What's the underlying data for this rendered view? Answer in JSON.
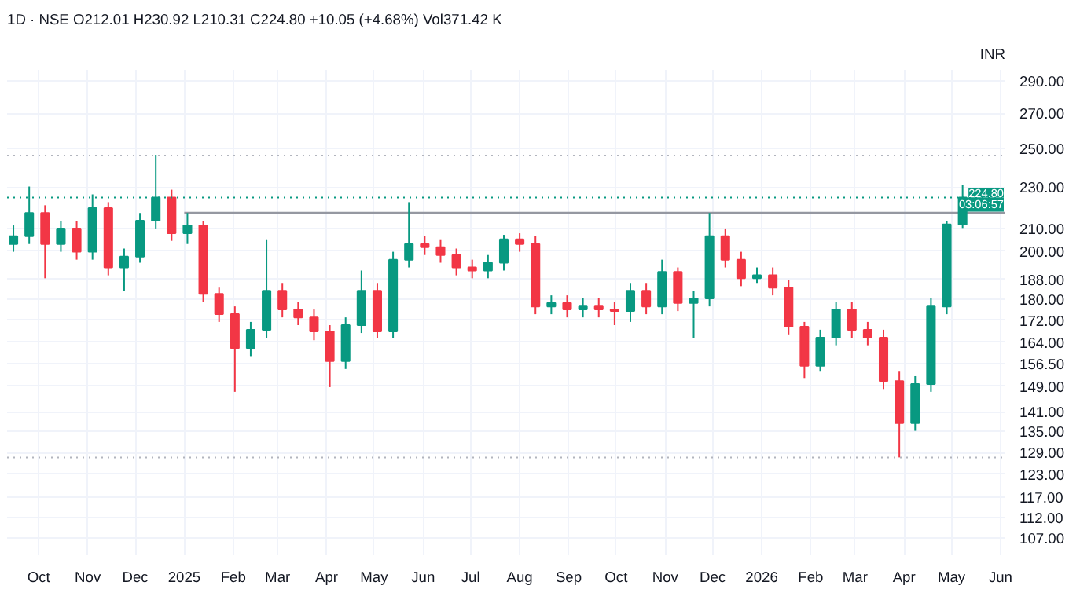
{
  "chart_data": {
    "type": "candlestick",
    "title": "1D · NSE  O212.01  H230.92  L210.31  C224.80  +10.05 (+4.68%)  Vol371.42 K",
    "ylabel": "INR",
    "x": [
      "2024-09-15",
      "2024-09-25",
      "2024-10-05",
      "2024-10-15",
      "2024-10-25",
      "2024-11-04",
      "2024-11-14",
      "2024-11-24",
      "2024-12-04",
      "2024-12-14",
      "2024-12-24",
      "2025-01-03",
      "2025-01-13",
      "2025-01-23",
      "2025-02-02",
      "2025-02-12",
      "2025-02-22",
      "2025-03-04",
      "2025-03-14",
      "2025-03-24",
      "2025-04-03",
      "2025-04-13",
      "2025-04-23",
      "2025-05-03",
      "2025-05-13",
      "2025-05-23",
      "2025-06-02",
      "2025-06-12",
      "2025-06-22",
      "2025-07-02",
      "2025-07-12",
      "2025-07-22",
      "2025-08-01",
      "2025-08-11",
      "2025-08-21",
      "2025-08-31",
      "2025-09-10",
      "2025-09-20",
      "2025-09-30",
      "2025-10-10",
      "2025-10-20",
      "2025-10-30",
      "2025-11-09",
      "2025-11-19",
      "2025-11-29",
      "2025-12-09",
      "2025-12-19",
      "2025-12-29",
      "2026-01-08",
      "2026-01-18",
      "2026-01-28",
      "2026-02-07",
      "2026-02-17",
      "2026-02-27",
      "2026-03-09",
      "2026-03-19",
      "2026-03-29",
      "2026-04-08",
      "2026-04-18",
      "2026-04-28",
      "2026-05-08"
    ],
    "ohlc": [
      [
        203.1,
        211.5,
        199.7,
        206.6
      ],
      [
        206.6,
        230.2,
        203.1,
        217.3
      ],
      [
        217.3,
        221.0,
        188.5,
        203.1
      ],
      [
        203.1,
        213.7,
        199.7,
        210.1
      ],
      [
        210.1,
        213.7,
        196.3,
        199.7
      ],
      [
        199.7,
        226.3,
        196.3,
        219.6
      ],
      [
        219.6,
        222.5,
        189.7,
        193.0
      ],
      [
        193.0,
        201.1,
        183.4,
        197.6
      ],
      [
        197.6,
        217.3,
        195.0,
        213.7
      ],
      [
        213.7,
        246.3,
        210.1,
        224.8
      ],
      [
        224.8,
        228.6,
        204.5,
        207.9
      ],
      [
        207.9,
        217.3,
        203.1,
        211.5
      ],
      [
        211.5,
        213.7,
        179.1,
        182.2
      ],
      [
        182.2,
        184.7,
        171.4,
        174.3
      ],
      [
        174.3,
        177.3,
        147.2,
        161.9
      ],
      [
        161.9,
        171.4,
        159.1,
        168.5
      ],
      [
        168.5,
        205.2,
        165.6,
        183.4
      ],
      [
        183.4,
        186.6,
        173.1,
        176.1
      ],
      [
        176.1,
        179.1,
        170.2,
        173.1
      ],
      [
        173.1,
        176.1,
        164.7,
        167.9
      ],
      [
        167.9,
        170.2,
        148.7,
        157.4
      ],
      [
        157.4,
        173.1,
        154.7,
        170.2
      ],
      [
        170.2,
        191.7,
        167.3,
        183.4
      ],
      [
        183.4,
        186.6,
        165.6,
        167.9
      ],
      [
        167.9,
        199.7,
        165.6,
        196.3
      ],
      [
        196.3,
        222.5,
        193.0,
        203.1
      ],
      [
        203.1,
        206.6,
        198.3,
        201.7
      ],
      [
        201.7,
        205.2,
        195.0,
        198.3
      ],
      [
        198.3,
        201.1,
        189.7,
        193.0
      ],
      [
        193.0,
        196.3,
        188.5,
        191.7
      ],
      [
        191.7,
        198.3,
        188.5,
        195.0
      ],
      [
        195.0,
        207.2,
        191.7,
        205.2
      ],
      [
        205.2,
        207.9,
        199.7,
        203.1
      ],
      [
        203.1,
        206.6,
        174.3,
        177.3
      ],
      [
        177.3,
        181.6,
        174.3,
        178.6
      ],
      [
        178.6,
        181.6,
        173.1,
        176.1
      ],
      [
        176.1,
        180.4,
        173.1,
        177.3
      ],
      [
        177.3,
        180.4,
        173.1,
        176.1
      ],
      [
        176.1,
        179.1,
        170.2,
        175.5
      ],
      [
        175.5,
        186.6,
        171.4,
        183.4
      ],
      [
        183.4,
        186.6,
        174.3,
        177.3
      ],
      [
        177.3,
        196.3,
        174.3,
        191.1
      ],
      [
        191.1,
        193.0,
        175.5,
        178.6
      ],
      [
        178.6,
        183.4,
        165.6,
        180.4
      ],
      [
        180.4,
        217.3,
        177.3,
        206.6
      ],
      [
        206.6,
        210.1,
        193.0,
        196.3
      ],
      [
        196.3,
        199.7,
        185.3,
        188.5
      ],
      [
        188.5,
        193.0,
        186.6,
        189.7
      ],
      [
        189.7,
        193.0,
        181.6,
        184.7
      ],
      [
        184.7,
        187.9,
        166.8,
        169.6
      ],
      [
        169.6,
        171.4,
        151.7,
        155.8
      ],
      [
        155.8,
        168.5,
        153.8,
        165.6
      ],
      [
        165.6,
        179.1,
        162.9,
        176.1
      ],
      [
        176.1,
        179.1,
        165.6,
        168.5
      ],
      [
        168.5,
        171.4,
        162.9,
        165.6
      ],
      [
        165.6,
        168.5,
        148.1,
        150.7
      ],
      [
        150.7,
        153.8,
        127.6,
        137.5
      ],
      [
        137.5,
        152.3,
        135.2,
        149.7
      ],
      [
        149.7,
        180.4,
        147.2,
        177.3
      ],
      [
        177.3,
        213.7,
        174.3,
        212.01
      ],
      [
        212.01,
        230.92,
        210.31,
        224.8
      ]
    ],
    "colors": [
      "#089981",
      "#089981",
      "#f23645",
      "#089981",
      "#f23645",
      "#089981",
      "#f23645",
      "#089981",
      "#089981",
      "#089981",
      "#f23645",
      "#089981",
      "#f23645",
      "#f23645",
      "#f23645",
      "#089981",
      "#089981",
      "#f23645",
      "#f23645",
      "#f23645",
      "#f23645",
      "#089981",
      "#089981",
      "#f23645",
      "#089981",
      "#089981",
      "#f23645",
      "#f23645",
      "#f23645",
      "#f23645",
      "#089981",
      "#089981",
      "#f23645",
      "#f23645",
      "#089981",
      "#f23645",
      "#089981",
      "#f23645",
      "#f23645",
      "#089981",
      "#f23645",
      "#089981",
      "#f23645",
      "#089981",
      "#089981",
      "#f23645",
      "#f23645",
      "#089981",
      "#f23645",
      "#f23645",
      "#f23645",
      "#089981",
      "#089981",
      "#f23645",
      "#f23645",
      "#f23645",
      "#f23645",
      "#089981",
      "#089981",
      "#089981",
      "#089981"
    ],
    "series": [
      {
        "type": "line",
        "color": "#9598a1",
        "x": [
          "2025-01-01",
          "2026-06-04"
        ],
        "values": [
          217.3,
          217.3
        ]
      }
    ],
    "ref_lines": [
      {
        "axis": "y",
        "value": 246.3,
        "color": "#b2b5be",
        "line_style": "dotted"
      },
      {
        "axis": "y",
        "value": 127.6,
        "color": "#b2b5be",
        "line_style": "dotted"
      },
      {
        "axis": "y",
        "value": 224.8,
        "label": "224.80",
        "color": "#089981",
        "line_style": "dotted"
      }
    ],
    "annotations": [
      {
        "text": "03:06:57",
        "y": 224.8
      }
    ],
    "log": "y",
    "grid": true,
    "xlim": [
      "2024-09-11",
      "2026-06-04"
    ],
    "xticks": [
      {
        "value": "2024-10-01",
        "label": "Oct"
      },
      {
        "value": "2024-11-01",
        "label": "Nov"
      },
      {
        "value": "2024-12-01",
        "label": "Dec"
      },
      {
        "value": "2025-01-01",
        "label": "2025"
      },
      {
        "value": "2025-02-01",
        "label": "Feb"
      },
      {
        "value": "2025-03-01",
        "label": "Mar"
      },
      {
        "value": "2025-04-01",
        "label": "Apr"
      },
      {
        "value": "2025-05-01",
        "label": "May"
      },
      {
        "value": "2025-06-01",
        "label": "Jun"
      },
      {
        "value": "2025-07-01",
        "label": "Jul"
      },
      {
        "value": "2025-08-01",
        "label": "Aug"
      },
      {
        "value": "2025-09-01",
        "label": "Sep"
      },
      {
        "value": "2025-10-01",
        "label": "Oct"
      },
      {
        "value": "2025-11-01",
        "label": "Nov"
      },
      {
        "value": "2025-12-01",
        "label": "Dec"
      },
      {
        "value": "2026-01-01",
        "label": "2026"
      },
      {
        "value": "2026-02-01",
        "label": "Feb"
      },
      {
        "value": "2026-03-01",
        "label": "Mar"
      },
      {
        "value": "2026-04-01",
        "label": "Apr"
      },
      {
        "value": "2026-05-01",
        "label": "May"
      },
      {
        "value": "2026-06-01",
        "label": "Jun"
      }
    ],
    "ylim": [
      103.1,
      296.8
    ],
    "yticks": [
      {
        "value": 107,
        "label": "107.00"
      },
      {
        "value": 112,
        "label": "112.00"
      },
      {
        "value": 117,
        "label": "117.00"
      },
      {
        "value": 123,
        "label": "123.00"
      },
      {
        "value": 129,
        "label": "129.00"
      },
      {
        "value": 135,
        "label": "135.00"
      },
      {
        "value": 141,
        "label": "141.00"
      },
      {
        "value": 149,
        "label": "149.00"
      },
      {
        "value": 156.5,
        "label": "156.50"
      },
      {
        "value": 164,
        "label": "164.00"
      },
      {
        "value": 172,
        "label": "172.00"
      },
      {
        "value": 180,
        "label": "180.00"
      },
      {
        "value": 188,
        "label": "188.00"
      },
      {
        "value": 200,
        "label": "200.00"
      },
      {
        "value": 210,
        "label": "210.00"
      },
      {
        "value": 230,
        "label": "230.00"
      },
      {
        "value": 250,
        "label": "250.00"
      },
      {
        "value": 270,
        "label": "270.00"
      },
      {
        "value": 290,
        "label": "290.00"
      }
    ]
  }
}
